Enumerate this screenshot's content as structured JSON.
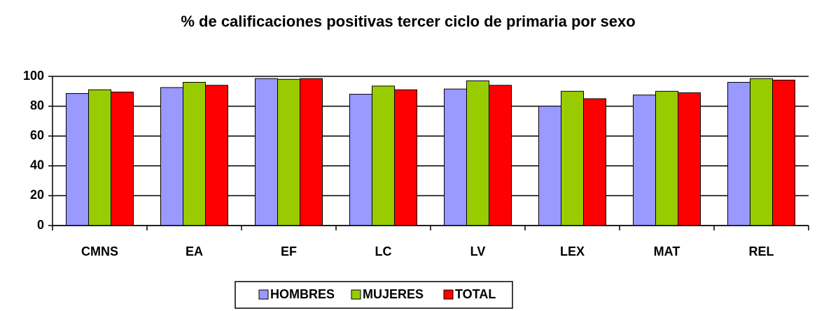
{
  "chart_data": {
    "type": "bar",
    "title": "% de calificaciones positivas tercer ciclo de primaria por sexo",
    "categories": [
      "CMNS",
      "EA",
      "EF",
      "LC",
      "LV",
      "LEX",
      "MAT",
      "REL"
    ],
    "series": [
      {
        "name": "HOMBRES",
        "color": "#9999ff",
        "values": [
          88.5,
          92.5,
          98.5,
          88,
          91.5,
          80,
          87.5,
          96
        ]
      },
      {
        "name": "MUJERES",
        "color": "#99cc00",
        "values": [
          91,
          96,
          98,
          93.5,
          97,
          90,
          90,
          98.5
        ]
      },
      {
        "name": "TOTAL",
        "color": "#ff0000",
        "values": [
          89.5,
          94,
          98.5,
          91,
          94,
          85,
          89,
          97.5
        ]
      }
    ],
    "ylim": [
      0,
      100
    ],
    "yticks": [
      0,
      20,
      40,
      60,
      80,
      100
    ],
    "grid": true,
    "legend": "bottom"
  }
}
